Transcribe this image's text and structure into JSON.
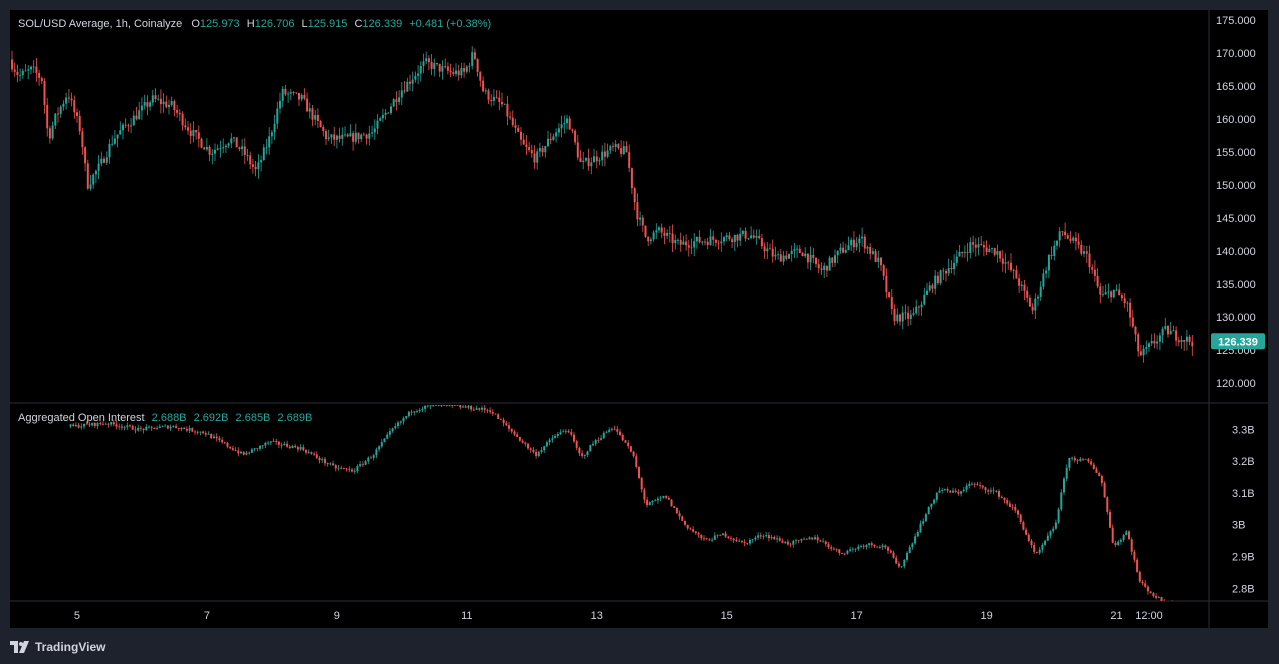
{
  "header": {
    "symbol_line": "SOL/USD Average, 1h, Coinalyze",
    "o_label": "O",
    "o_value": "125.973",
    "h_label": "H",
    "h_value": "126.706",
    "l_label": "L",
    "l_value": "125.915",
    "c_label": "C",
    "c_value": "126.339",
    "change": "+0.481 (+0.38%)"
  },
  "oi_header": {
    "title": "Aggregated Open Interest",
    "values": [
      "2.688B",
      "2.692B",
      "2.685B",
      "2.689B"
    ]
  },
  "colors": {
    "up": "#26a69a",
    "down": "#ef5350",
    "grid": "#2a2e39",
    "text": "#d1d4dc",
    "badge": "#26a69a"
  },
  "branding": {
    "name": "TradingView"
  },
  "chart_data": [
    {
      "type": "candlestick",
      "title": "SOL/USD Average, 1h, Coinalyze",
      "ylim": [
        117,
        176.5
      ],
      "y_ticks": [
        "175.000",
        "170.000",
        "165.000",
        "160.000",
        "155.000",
        "150.000",
        "145.000",
        "140.000",
        "135.000",
        "130.000",
        "125.000",
        "120.000"
      ],
      "y_tick_values": [
        175,
        170,
        165,
        160,
        155,
        150,
        145,
        140,
        135,
        130,
        125,
        120
      ],
      "last_price": "126.339",
      "x_ticks": [
        "5",
        "7",
        "9",
        "11",
        "13",
        "15",
        "17",
        "19",
        "21",
        "12:00"
      ],
      "x_tick_values": [
        5,
        7,
        9,
        11,
        13,
        15,
        17,
        19,
        21,
        21.5
      ],
      "xlim": [
        4.0,
        22.3
      ],
      "anchor_points": [
        [
          4.0,
          169
        ],
        [
          4.15,
          166.5
        ],
        [
          4.35,
          167.5
        ],
        [
          4.5,
          166
        ],
        [
          4.6,
          157
        ],
        [
          4.7,
          160
        ],
        [
          4.9,
          164
        ],
        [
          5.1,
          158
        ],
        [
          5.2,
          150
        ],
        [
          5.4,
          153
        ],
        [
          5.6,
          157
        ],
        [
          5.8,
          159
        ],
        [
          6.0,
          161
        ],
        [
          6.2,
          163
        ],
        [
          6.5,
          162
        ],
        [
          6.8,
          158
        ],
        [
          7.1,
          155
        ],
        [
          7.4,
          157
        ],
        [
          7.6,
          155
        ],
        [
          7.8,
          152
        ],
        [
          8.0,
          157
        ],
        [
          8.2,
          164
        ],
        [
          8.5,
          163
        ],
        [
          8.9,
          157
        ],
        [
          9.2,
          157
        ],
        [
          9.6,
          158
        ],
        [
          10.0,
          164
        ],
        [
          10.4,
          168.5
        ],
        [
          10.8,
          167
        ],
        [
          11.0,
          167
        ],
        [
          11.15,
          170
        ],
        [
          11.3,
          164
        ],
        [
          11.6,
          162
        ],
        [
          11.9,
          156
        ],
        [
          12.1,
          154
        ],
        [
          12.4,
          158
        ],
        [
          12.6,
          160
        ],
        [
          12.8,
          153
        ],
        [
          13.0,
          154
        ],
        [
          13.3,
          155.5
        ],
        [
          13.5,
          155
        ],
        [
          13.65,
          146
        ],
        [
          13.8,
          142
        ],
        [
          14.0,
          143
        ],
        [
          14.3,
          141
        ],
        [
          14.6,
          141.5
        ],
        [
          15.0,
          142
        ],
        [
          15.4,
          142.5
        ],
        [
          15.8,
          139
        ],
        [
          16.2,
          140
        ],
        [
          16.5,
          137
        ],
        [
          16.8,
          140
        ],
        [
          17.1,
          142
        ],
        [
          17.4,
          138
        ],
        [
          17.6,
          130
        ],
        [
          17.9,
          130
        ],
        [
          18.2,
          135
        ],
        [
          18.5,
          138
        ],
        [
          18.8,
          141
        ],
        [
          19.2,
          140
        ],
        [
          19.5,
          136
        ],
        [
          19.75,
          131
        ],
        [
          20.0,
          139
        ],
        [
          20.2,
          143
        ],
        [
          20.4,
          141
        ],
        [
          20.6,
          139
        ],
        [
          20.8,
          133
        ],
        [
          21.0,
          134
        ],
        [
          21.2,
          132
        ],
        [
          21.4,
          124
        ],
        [
          21.6,
          126
        ],
        [
          21.8,
          128
        ],
        [
          22.0,
          127
        ],
        [
          22.2,
          126.3
        ]
      ]
    },
    {
      "type": "candlestick",
      "title": "Aggregated Open Interest",
      "ylim": [
        2.76,
        3.38
      ],
      "y_ticks": [
        "3.3B",
        "3.2B",
        "3.1B",
        "3B",
        "2.9B",
        "2.8B"
      ],
      "y_tick_values": [
        3.3,
        3.2,
        3.1,
        3.0,
        2.9,
        2.8
      ],
      "values_shown": [
        "2.688B",
        "2.692B",
        "2.685B",
        "2.689B"
      ],
      "anchor_points": [
        [
          4.0,
          3.3
        ],
        [
          5.0,
          3.31
        ],
        [
          5.5,
          3.32
        ],
        [
          6.0,
          3.3
        ],
        [
          6.5,
          3.31
        ],
        [
          7.0,
          3.29
        ],
        [
          7.6,
          3.22
        ],
        [
          8.0,
          3.26
        ],
        [
          8.5,
          3.24
        ],
        [
          9.0,
          3.18
        ],
        [
          9.3,
          3.17
        ],
        [
          9.6,
          3.22
        ],
        [
          9.9,
          3.3
        ],
        [
          10.2,
          3.36
        ],
        [
          10.6,
          3.38
        ],
        [
          11.0,
          3.37
        ],
        [
          11.4,
          3.36
        ],
        [
          11.8,
          3.28
        ],
        [
          12.1,
          3.22
        ],
        [
          12.4,
          3.28
        ],
        [
          12.6,
          3.3
        ],
        [
          12.8,
          3.21
        ],
        [
          13.0,
          3.26
        ],
        [
          13.3,
          3.31
        ],
        [
          13.6,
          3.22
        ],
        [
          13.8,
          3.06
        ],
        [
          14.1,
          3.09
        ],
        [
          14.4,
          3.0
        ],
        [
          14.7,
          2.95
        ],
        [
          15.0,
          2.97
        ],
        [
          15.3,
          2.94
        ],
        [
          15.6,
          2.97
        ],
        [
          16.0,
          2.94
        ],
        [
          16.4,
          2.96
        ],
        [
          16.8,
          2.91
        ],
        [
          17.2,
          2.94
        ],
        [
          17.5,
          2.93
        ],
        [
          17.7,
          2.86
        ],
        [
          18.0,
          2.99
        ],
        [
          18.3,
          3.11
        ],
        [
          18.6,
          3.1
        ],
        [
          18.8,
          3.13
        ],
        [
          19.2,
          3.1
        ],
        [
          19.5,
          3.04
        ],
        [
          19.8,
          2.9
        ],
        [
          20.1,
          3.0
        ],
        [
          20.3,
          3.21
        ],
        [
          20.6,
          3.2
        ],
        [
          20.8,
          3.15
        ],
        [
          21.0,
          2.93
        ],
        [
          21.2,
          2.98
        ],
        [
          21.4,
          2.82
        ],
        [
          21.6,
          2.78
        ],
        [
          21.8,
          2.75
        ]
      ]
    }
  ]
}
